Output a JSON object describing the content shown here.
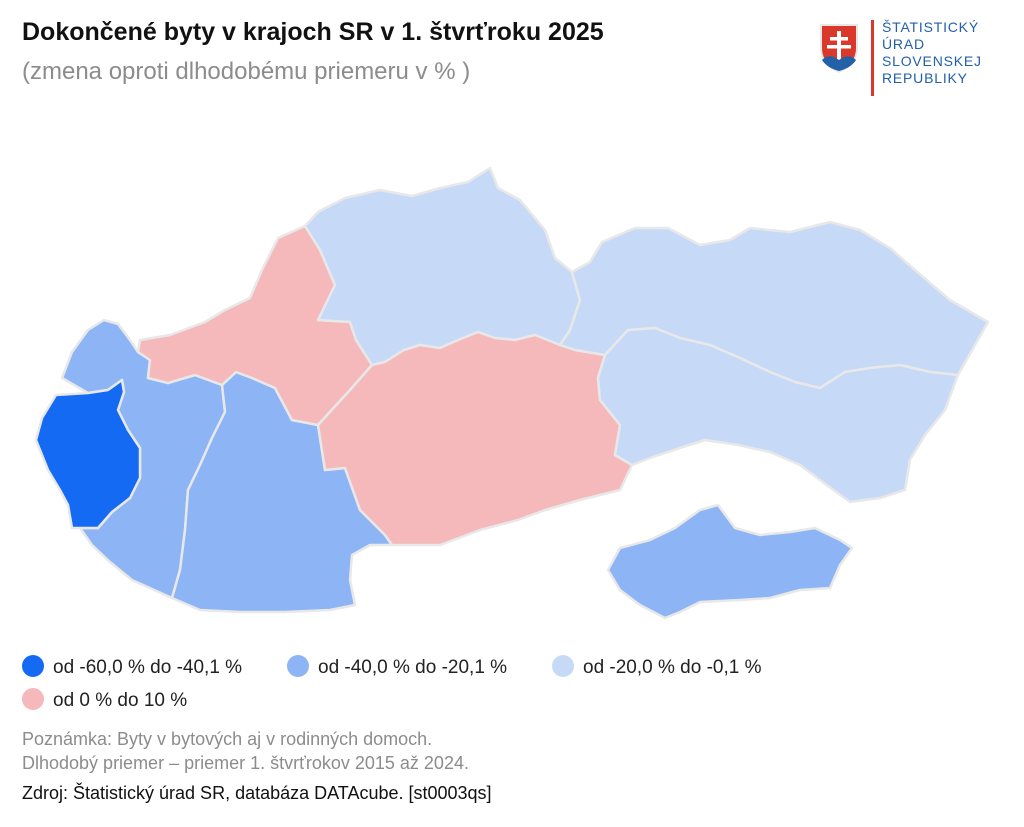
{
  "header": {
    "title": "Dokončené byty v krajoch SR v 1. štvrťroku 2025",
    "subtitle": "(zmena oproti dlhodobému priemeru v % )"
  },
  "logo": {
    "line1": "ŠTATISTICKÝ",
    "line2": "ÚRAD",
    "line3": "SLOVENSKEJ",
    "line4": "REPUBLIKY"
  },
  "colors": {
    "class1": "#156af3",
    "class2": "#8db4f5",
    "class3": "#c6daf8",
    "class4": "#f5b8bb"
  },
  "legend": [
    {
      "label": "od -60,0 % do -40,1 %",
      "color": "#156af3"
    },
    {
      "label": "od -40,0 % do -20,1 %",
      "color": "#8db4f5"
    },
    {
      "label": "od -20,0 % do -0,1 %",
      "color": "#c6daf8"
    },
    {
      "label": "od 0 % do 10 %",
      "color": "#f5b8bb"
    }
  ],
  "regions": {
    "bratislava": {
      "class": "od -60,0 % do -40,1 %"
    },
    "trnava": {
      "class": "od -40,0 % do -20,1 %"
    },
    "nitra": {
      "class": "od -40,0 % do -20,1 %"
    },
    "trencin": {
      "class": "od 0 % do 10 %"
    },
    "zilina": {
      "class": "od -20,0 % do -0,1 %"
    },
    "banska_bystrica": {
      "class": "od 0 % do 10 %"
    },
    "presov": {
      "class": "od -20,0 % do -0,1 %"
    },
    "kosice": {
      "class": "od -20,0 % do -0,1 %"
    },
    "hungary_exclave_like": {
      "class": "od -40,0 % do -20,1 %"
    }
  },
  "notes": {
    "line1": "Poznámka: Byty v bytových aj v rodinných domoch.",
    "line2": "Dlhodobý priemer – priemer 1. štvrťrokov 2015 až 2024."
  },
  "source": "Zdroj: Štatistický úrad SR, databáza DATAcube. [st0003qs]"
}
